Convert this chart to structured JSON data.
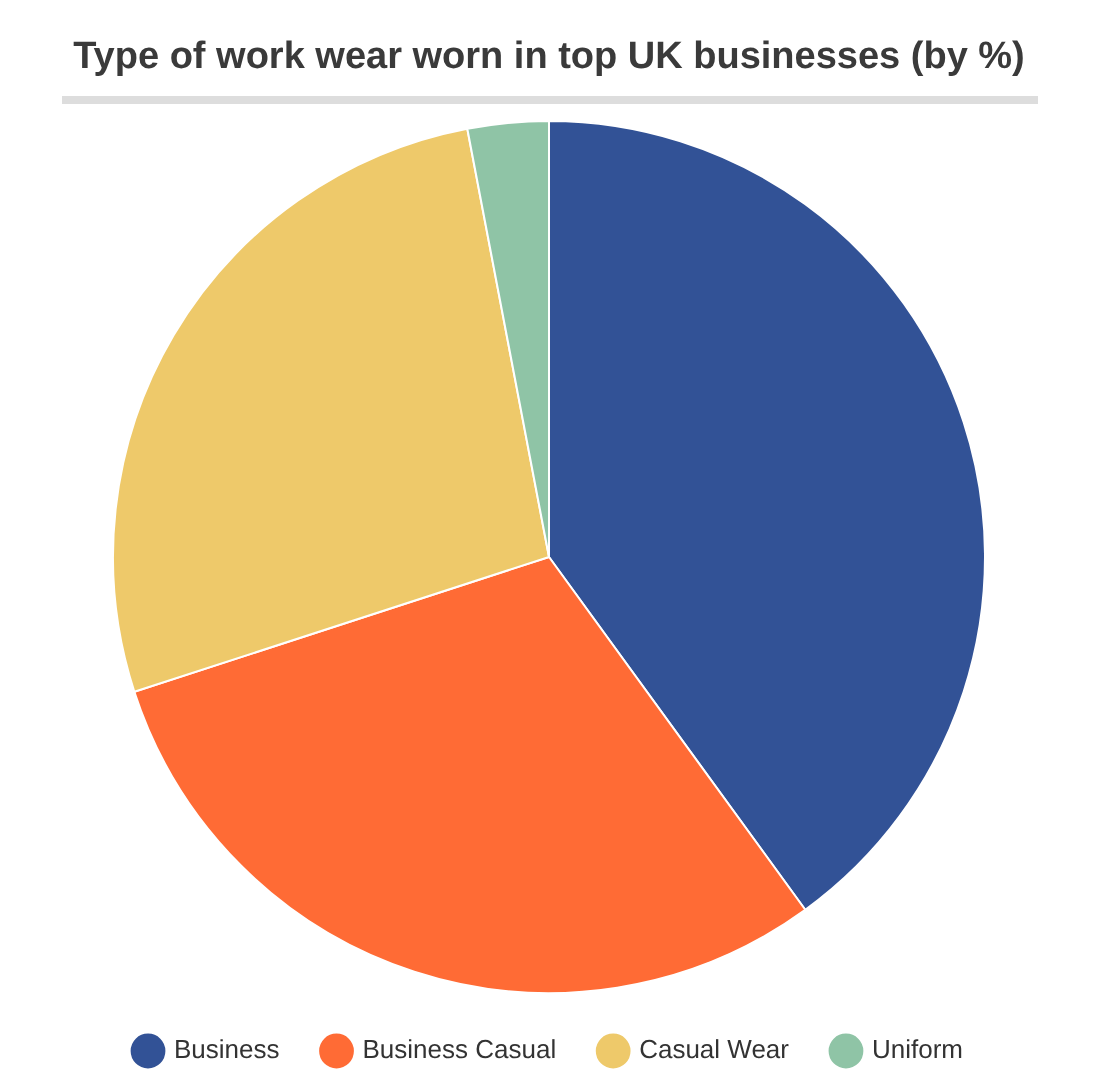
{
  "chart_data": {
    "type": "pie",
    "title": "Type of work wear worn in top UK businesses (by %)",
    "categories": [
      "Business",
      "Business Casual",
      "Casual Wear",
      "Uniform"
    ],
    "values": [
      40,
      30,
      27,
      3
    ],
    "colors": [
      "#325296",
      "#ff6b35",
      "#eec96a",
      "#8fc4a6"
    ],
    "legend": "bottom",
    "marker": "circle"
  }
}
